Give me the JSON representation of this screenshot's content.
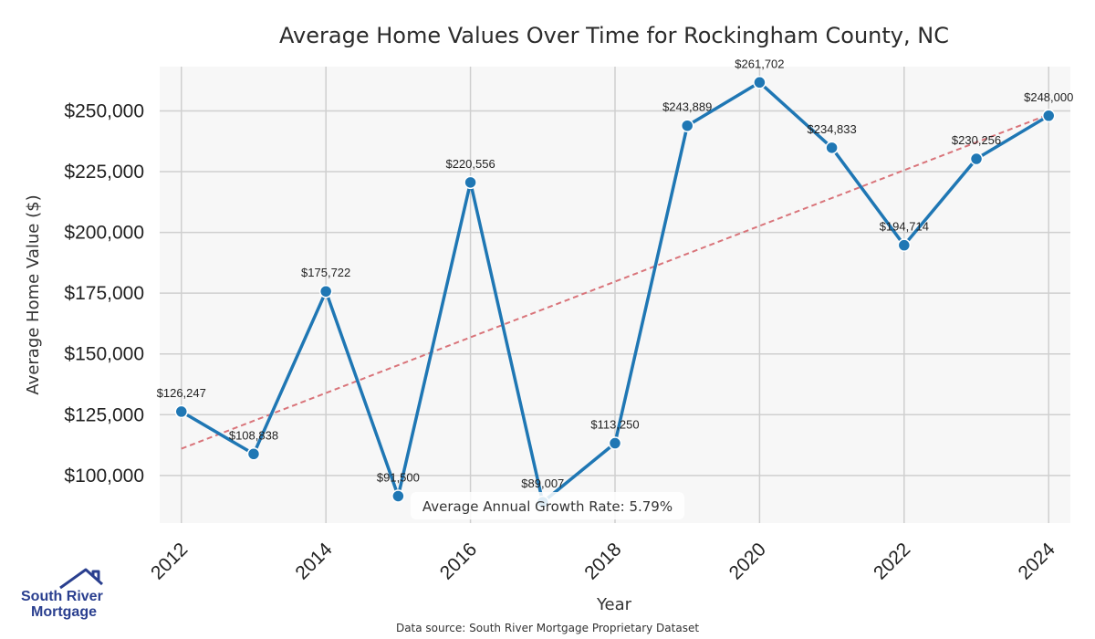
{
  "chart_data": {
    "type": "line",
    "title": "Average Home Values Over Time for Rockingham County, NC",
    "xlabel": "Year",
    "ylabel": "Average Home Value ($)",
    "x": [
      2012,
      2013,
      2014,
      2015,
      2016,
      2017,
      2018,
      2019,
      2020,
      2021,
      2022,
      2023,
      2024
    ],
    "series": [
      {
        "name": "Average Home Value",
        "color": "#1f77b4",
        "values": [
          126247,
          108838,
          175722,
          91500,
          220556,
          89007,
          113250,
          243889,
          261702,
          234833,
          194714,
          230256,
          248000
        ],
        "labels": [
          "$126,247",
          "$108,838",
          "$175,722",
          "$91,500",
          "$220,556",
          "$89,007",
          "$113,250",
          "$243,889",
          "$261,702",
          "$234,833",
          "$194,714",
          "$230,256",
          "$248,000"
        ]
      }
    ],
    "trendline": {
      "color": "#d9747a",
      "start_value": 111000,
      "end_value": 248500
    },
    "xticks": [
      2012,
      2014,
      2016,
      2018,
      2020,
      2022,
      2024
    ],
    "xtick_labels": [
      "2012",
      "2014",
      "2016",
      "2018",
      "2020",
      "2022",
      "2024"
    ],
    "yticks": [
      100000,
      125000,
      150000,
      175000,
      200000,
      225000,
      250000
    ],
    "ytick_labels": [
      "$100,000",
      "$125,000",
      "$150,000",
      "$175,000",
      "$200,000",
      "$225,000",
      "$250,000"
    ],
    "xlim": [
      2011.7,
      2024.3
    ],
    "ylim": [
      80400,
      268200
    ],
    "grid": true,
    "annotation": "Average Annual Growth Rate: 5.79%"
  },
  "footer": {
    "source": "Data source: South River Mortgage Proprietary Dataset"
  },
  "logo": {
    "line1": "South River",
    "line2": "Mortgage",
    "color": "#2a3f8f"
  }
}
